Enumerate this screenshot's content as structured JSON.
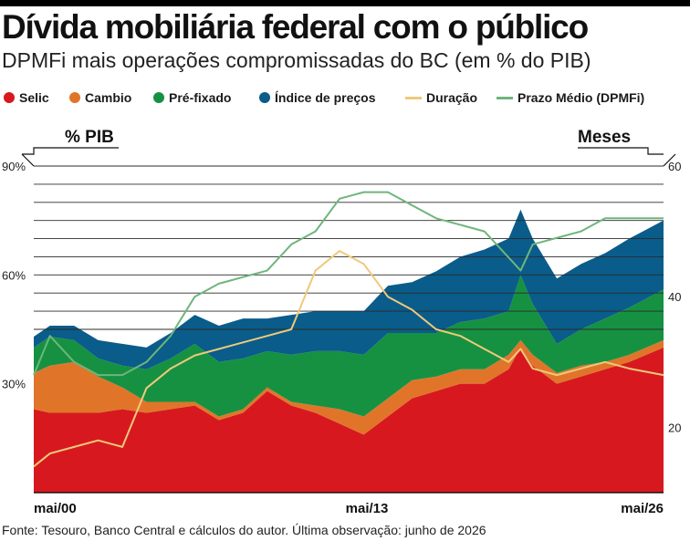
{
  "header": {
    "title": "Dívida mobiliária federal com o público",
    "subtitle": "DPMFi mais operações compromissadas do BC (em % do PIB)"
  },
  "legend": [
    {
      "label": "Selic",
      "color": "#d7191f",
      "kind": "dot"
    },
    {
      "label": "Cambio",
      "color": "#e0752a",
      "kind": "dot"
    },
    {
      "label": "Pré-fixado",
      "color": "#169142",
      "kind": "dot"
    },
    {
      "label": "Índice de preços",
      "color": "#0a5c8a",
      "kind": "dot"
    },
    {
      "label": "Duração",
      "color": "#f0c97a",
      "kind": "line"
    },
    {
      "label": "Prazo Médio (DPMFi)",
      "color": "#6fb57c",
      "kind": "line"
    }
  ],
  "footer": {
    "source": "Fonte: Tesouro, Banco Central e cálculos do autor. Última observação: junho de 2026"
  },
  "chart_data": {
    "type": "area",
    "stacked": true,
    "left_axis_label": "% PIB",
    "right_axis_label": "Meses",
    "left_ticks": [
      "30%",
      "60%",
      "90%"
    ],
    "right_ticks": [
      "20",
      "40",
      "60"
    ],
    "x_ticks": [
      "mai/00",
      "mai/13",
      "mai/26"
    ],
    "ylim_left": [
      0,
      90
    ],
    "ylim_right": [
      10,
      60
    ],
    "grid": true,
    "x": [
      2000.33,
      2001,
      2002,
      2003,
      2004,
      2005,
      2006,
      2007,
      2008,
      2009,
      2010,
      2011,
      2012,
      2013,
      2014,
      2015,
      2016,
      2017,
      2018,
      2019,
      2020,
      2020.5,
      2021,
      2022,
      2023,
      2024,
      2025,
      2026.42
    ],
    "series": [
      {
        "name": "Selic",
        "axis": "left",
        "values": [
          23,
          22,
          22,
          22,
          23,
          22,
          23,
          24,
          20,
          22,
          28,
          24,
          22,
          19,
          16,
          21,
          26,
          28,
          30,
          30,
          34,
          40,
          35,
          30,
          32,
          34,
          36,
          40
        ]
      },
      {
        "name": "Cambio",
        "axis": "left",
        "values": [
          10,
          13,
          14,
          10,
          6,
          3,
          2,
          1,
          1,
          1,
          1,
          1,
          2,
          4,
          5,
          5,
          5,
          4,
          4,
          4,
          4,
          2,
          3,
          3,
          3,
          2,
          2,
          2
        ]
      },
      {
        "name": "Pré-fixado",
        "axis": "left",
        "values": [
          7,
          8,
          6,
          5,
          6,
          9,
          12,
          16,
          15,
          14,
          10,
          13,
          15,
          16,
          17,
          18,
          13,
          12,
          13,
          14,
          12,
          18,
          14,
          8,
          10,
          12,
          13,
          14
        ]
      },
      {
        "name": "Índice de preços",
        "axis": "left",
        "values": [
          3,
          3,
          4,
          5,
          6,
          6,
          7,
          8,
          10,
          11,
          9,
          11,
          11,
          11,
          12,
          13,
          14,
          17,
          18,
          19,
          20,
          18,
          18,
          18,
          18,
          18,
          19,
          19
        ]
      },
      {
        "name": "Duração",
        "axis": "right",
        "values": [
          14,
          16,
          17,
          18,
          17,
          26,
          29,
          31,
          32,
          33,
          34,
          35,
          44,
          47,
          45,
          40,
          38,
          35,
          34,
          32,
          30,
          32,
          29,
          28,
          29,
          30,
          29,
          28
        ]
      },
      {
        "name": "Prazo Médio (DPMFi)",
        "axis": "right",
        "values": [
          28,
          34,
          30,
          28,
          28,
          30,
          34,
          40,
          42,
          43,
          44,
          48,
          50,
          55,
          56,
          56,
          54,
          52,
          51,
          50,
          46,
          44,
          48,
          49,
          50,
          52,
          52,
          52
        ]
      }
    ]
  }
}
